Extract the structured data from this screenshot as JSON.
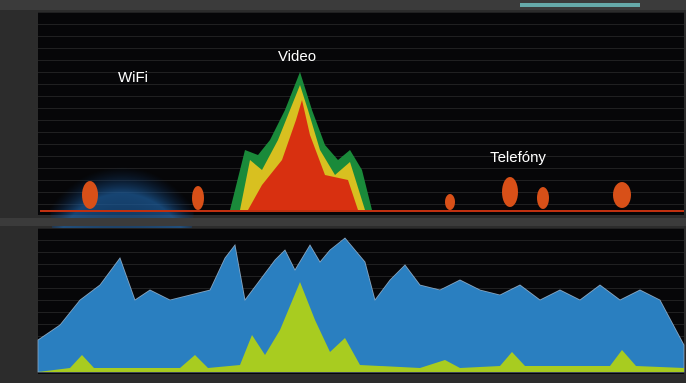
{
  "labels": [
    "WiFi",
    "Video",
    "Telefóny"
  ]
}
